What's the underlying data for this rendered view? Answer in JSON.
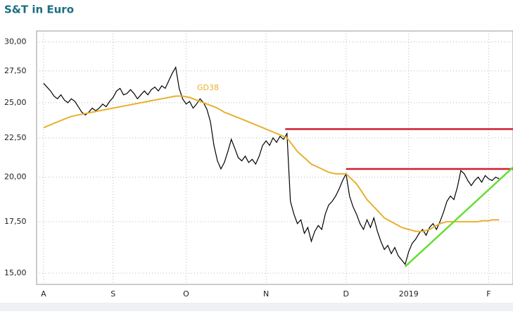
{
  "chart_data": {
    "type": "line",
    "title": "S&T in Euro",
    "xlim": [
      -2,
      135
    ],
    "ylim": [
      14.5,
      31
    ],
    "log_y": true,
    "grid": true,
    "xticks": [
      {
        "value": 0,
        "label": "A"
      },
      {
        "value": 20,
        "label": "S"
      },
      {
        "value": 41,
        "label": "O"
      },
      {
        "value": 64,
        "label": "N"
      },
      {
        "value": 87,
        "label": "D"
      },
      {
        "value": 105,
        "label": "2019"
      },
      {
        "value": 128,
        "label": "F"
      }
    ],
    "yticks": [
      {
        "value": 15,
        "label": "15,00"
      },
      {
        "value": 17.5,
        "label": "17,50"
      },
      {
        "value": 20,
        "label": "20,00"
      },
      {
        "value": 22.5,
        "label": "22,50"
      },
      {
        "value": 25,
        "label": "25,00"
      },
      {
        "value": 27.5,
        "label": "27,50"
      },
      {
        "value": 30,
        "label": "30,00"
      }
    ],
    "series": [
      {
        "color": "#000000",
        "values": [
          26.5,
          26.2,
          25.9,
          25.5,
          25.3,
          25.6,
          25.2,
          25.0,
          25.3,
          25.1,
          24.7,
          24.3,
          24.1,
          24.3,
          24.6,
          24.4,
          24.6,
          24.9,
          24.7,
          25.1,
          25.4,
          25.9,
          26.1,
          25.6,
          25.7,
          26.0,
          25.7,
          25.3,
          25.6,
          25.9,
          25.6,
          26.0,
          26.2,
          25.9,
          26.3,
          26.1,
          26.7,
          27.3,
          27.8,
          26.1,
          25.3,
          24.9,
          25.1,
          24.6,
          24.9,
          25.3,
          25.0,
          24.5,
          23.6,
          22.0,
          21.0,
          20.5,
          20.9,
          21.6,
          22.4,
          21.8,
          21.2,
          21.0,
          21.3,
          20.9,
          21.1,
          20.8,
          21.3,
          22.0,
          22.3,
          22.0,
          22.5,
          22.2,
          22.6,
          22.4,
          22.8,
          18.6,
          17.9,
          17.4,
          17.6,
          16.9,
          17.2,
          16.5,
          17.0,
          17.3,
          17.1,
          17.9,
          18.4,
          18.6,
          18.9,
          19.3,
          19.8,
          20.2,
          18.9,
          18.3,
          17.9,
          17.4,
          17.1,
          17.6,
          17.2,
          17.7,
          17.0,
          16.5,
          16.1,
          16.3,
          15.9,
          16.2,
          15.8,
          15.6,
          15.4,
          16.0,
          16.4,
          16.6,
          16.9,
          17.1,
          16.8,
          17.2,
          17.4,
          17.1,
          17.5,
          18.0,
          18.6,
          18.9,
          18.7,
          19.4,
          20.4,
          20.2,
          19.8,
          19.5,
          19.8,
          20.0,
          19.7,
          20.1,
          19.9,
          19.8,
          20.0,
          19.9
        ]
      },
      {
        "name": "GD38",
        "color": "#e8b030",
        "values": [
          23.2,
          23.3,
          23.4,
          23.5,
          23.6,
          23.7,
          23.8,
          23.9,
          24.0,
          24.05,
          24.1,
          24.15,
          24.2,
          24.25,
          24.3,
          24.35,
          24.4,
          24.45,
          24.5,
          24.55,
          24.6,
          24.65,
          24.7,
          24.75,
          24.8,
          24.85,
          24.9,
          24.95,
          25.0,
          25.05,
          25.1,
          25.15,
          25.2,
          25.25,
          25.3,
          25.35,
          25.4,
          25.45,
          25.5,
          25.5,
          25.5,
          25.45,
          25.4,
          25.3,
          25.2,
          25.1,
          25.0,
          24.9,
          24.8,
          24.7,
          24.6,
          24.45,
          24.3,
          24.2,
          24.1,
          24.0,
          23.9,
          23.8,
          23.7,
          23.6,
          23.5,
          23.4,
          23.3,
          23.2,
          23.1,
          23.0,
          22.9,
          22.8,
          22.7,
          22.6,
          22.5,
          22.2,
          21.9,
          21.6,
          21.4,
          21.2,
          21.0,
          20.8,
          20.7,
          20.6,
          20.5,
          20.4,
          20.3,
          20.25,
          20.2,
          20.2,
          20.2,
          20.2,
          20.0,
          19.8,
          19.6,
          19.3,
          19.0,
          18.7,
          18.5,
          18.3,
          18.1,
          17.9,
          17.7,
          17.6,
          17.5,
          17.4,
          17.3,
          17.2,
          17.15,
          17.1,
          17.05,
          17.0,
          17.0,
          17.0,
          17.05,
          17.1,
          17.2,
          17.3,
          17.4,
          17.45,
          17.5,
          17.5,
          17.5,
          17.5,
          17.5,
          17.5,
          17.5,
          17.5,
          17.5,
          17.5,
          17.55,
          17.55,
          17.55,
          17.6,
          17.6,
          17.6
        ]
      }
    ],
    "lines": [
      {
        "color": "#cc2030",
        "x": [
          69.5,
          135
        ],
        "values": [
          23.1,
          23.1
        ]
      },
      {
        "color": "#cc2030",
        "x": [
          87,
          135
        ],
        "values": [
          20.5,
          20.5
        ]
      },
      {
        "color": "#66dd33",
        "x": [
          104,
          135
        ],
        "values": [
          15.3,
          20.6
        ]
      }
    ]
  }
}
